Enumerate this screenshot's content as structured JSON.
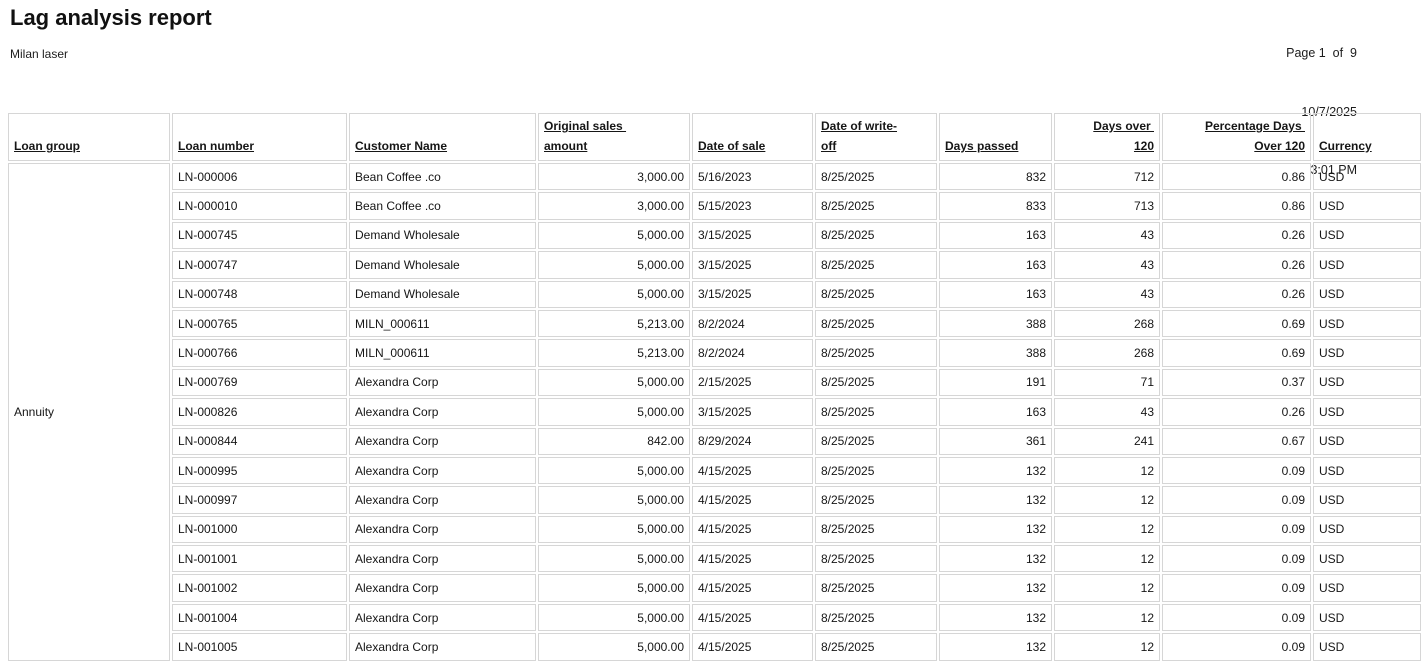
{
  "report": {
    "title": "Lag analysis report",
    "company": "Milan laser",
    "page_info": "Page 1  of  9",
    "date": "10/7/2025",
    "time": "3:01 PM"
  },
  "table": {
    "loan_group": "Annuity",
    "columns": [
      {
        "name": "loan-group",
        "label": "Loan group",
        "header_align": "left",
        "data_align": "left"
      },
      {
        "name": "loan-number",
        "label": "Loan number",
        "header_align": "left",
        "data_align": "left"
      },
      {
        "name": "customer-name",
        "label": "Customer Name",
        "header_align": "left",
        "data_align": "left"
      },
      {
        "name": "original-sales-amount",
        "label": "Original sales \namount",
        "header_align": "left",
        "data_align": "right"
      },
      {
        "name": "date-of-sale",
        "label": "Date of sale",
        "header_align": "left",
        "data_align": "left"
      },
      {
        "name": "date-of-write-off",
        "label": "Date of write-\noff",
        "header_align": "left",
        "data_align": "left"
      },
      {
        "name": "days-passed",
        "label": "Days passed",
        "header_align": "left",
        "data_align": "right"
      },
      {
        "name": "days-over-120",
        "label": "Days over \n120",
        "header_align": "right",
        "data_align": "right"
      },
      {
        "name": "percentage-days-over-120",
        "label": "Percentage Days \nOver 120",
        "header_align": "right",
        "data_align": "right"
      },
      {
        "name": "currency",
        "label": "Currency",
        "header_align": "left",
        "data_align": "left"
      }
    ],
    "rows": [
      [
        "LN-000006",
        "Bean Coffee .co",
        "3,000.00",
        "5/16/2023",
        "8/25/2025",
        "832",
        "712",
        "0.86",
        "USD"
      ],
      [
        "LN-000010",
        "Bean Coffee .co",
        "3,000.00",
        "5/15/2023",
        "8/25/2025",
        "833",
        "713",
        "0.86",
        "USD"
      ],
      [
        "LN-000745",
        "Demand Wholesale",
        "5,000.00",
        "3/15/2025",
        "8/25/2025",
        "163",
        "43",
        "0.26",
        "USD"
      ],
      [
        "LN-000747",
        "Demand Wholesale",
        "5,000.00",
        "3/15/2025",
        "8/25/2025",
        "163",
        "43",
        "0.26",
        "USD"
      ],
      [
        "LN-000748",
        "Demand Wholesale",
        "5,000.00",
        "3/15/2025",
        "8/25/2025",
        "163",
        "43",
        "0.26",
        "USD"
      ],
      [
        "LN-000765",
        "MILN_000611",
        "5,213.00",
        "8/2/2024",
        "8/25/2025",
        "388",
        "268",
        "0.69",
        "USD"
      ],
      [
        "LN-000766",
        "MILN_000611",
        "5,213.00",
        "8/2/2024",
        "8/25/2025",
        "388",
        "268",
        "0.69",
        "USD"
      ],
      [
        "LN-000769",
        "Alexandra Corp",
        "5,000.00",
        "2/15/2025",
        "8/25/2025",
        "191",
        "71",
        "0.37",
        "USD"
      ],
      [
        "LN-000826",
        "Alexandra Corp",
        "5,000.00",
        "3/15/2025",
        "8/25/2025",
        "163",
        "43",
        "0.26",
        "USD"
      ],
      [
        "LN-000844",
        "Alexandra Corp",
        "842.00",
        "8/29/2024",
        "8/25/2025",
        "361",
        "241",
        "0.67",
        "USD"
      ],
      [
        "LN-000995",
        "Alexandra Corp",
        "5,000.00",
        "4/15/2025",
        "8/25/2025",
        "132",
        "12",
        "0.09",
        "USD"
      ],
      [
        "LN-000997",
        "Alexandra Corp",
        "5,000.00",
        "4/15/2025",
        "8/25/2025",
        "132",
        "12",
        "0.09",
        "USD"
      ],
      [
        "LN-001000",
        "Alexandra Corp",
        "5,000.00",
        "4/15/2025",
        "8/25/2025",
        "132",
        "12",
        "0.09",
        "USD"
      ],
      [
        "LN-001001",
        "Alexandra Corp",
        "5,000.00",
        "4/15/2025",
        "8/25/2025",
        "132",
        "12",
        "0.09",
        "USD"
      ],
      [
        "LN-001002",
        "Alexandra Corp",
        "5,000.00",
        "4/15/2025",
        "8/25/2025",
        "132",
        "12",
        "0.09",
        "USD"
      ],
      [
        "LN-001004",
        "Alexandra Corp",
        "5,000.00",
        "4/15/2025",
        "8/25/2025",
        "132",
        "12",
        "0.09",
        "USD"
      ],
      [
        "LN-001005",
        "Alexandra Corp",
        "5,000.00",
        "4/15/2025",
        "8/25/2025",
        "132",
        "12",
        "0.09",
        "USD"
      ]
    ]
  }
}
